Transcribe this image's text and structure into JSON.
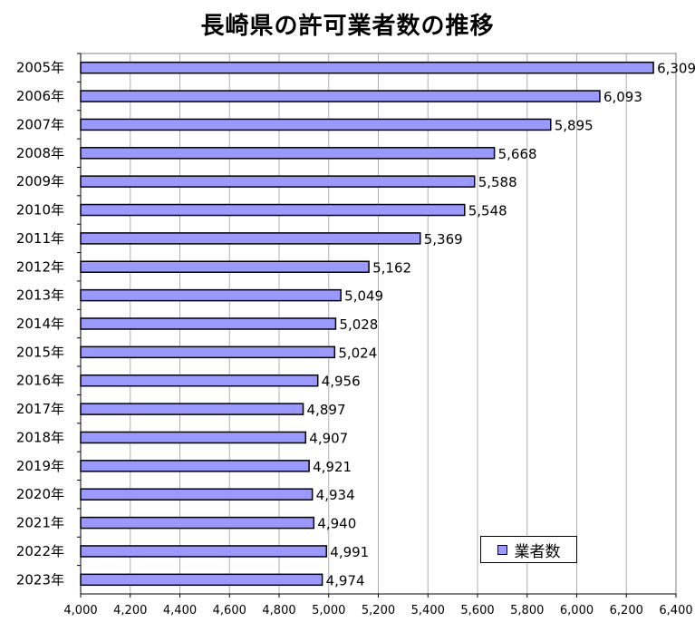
{
  "chart_data": {
    "type": "bar",
    "orientation": "horizontal",
    "title": "長崎県の許可業者数の推移",
    "categories": [
      "2005年",
      "2006年",
      "2007年",
      "2008年",
      "2009年",
      "2010年",
      "2011年",
      "2012年",
      "2013年",
      "2014年",
      "2015年",
      "2016年",
      "2017年",
      "2018年",
      "2019年",
      "2020年",
      "2021年",
      "2022年",
      "2023年"
    ],
    "series": [
      {
        "name": "業者数",
        "values": [
          6309,
          6093,
          5895,
          5668,
          5588,
          5548,
          5369,
          5162,
          5049,
          5028,
          5024,
          4956,
          4897,
          4907,
          4921,
          4934,
          4940,
          4991,
          4974
        ],
        "data_labels": [
          "6,309",
          "6,093",
          "5,895",
          "5,668",
          "5,588",
          "5,548",
          "5,369",
          "5,162",
          "5,049",
          "5,028",
          "5,024",
          "4,956",
          "4,897",
          "4,907",
          "4,921",
          "4,934",
          "4,940",
          "4,991",
          "4,974"
        ],
        "color": "#9999ff"
      }
    ],
    "xlim": [
      4000,
      6400
    ],
    "xticks": [
      "4,000",
      "4,200",
      "4,400",
      "4,600",
      "4,800",
      "5,000",
      "5,200",
      "5,400",
      "5,600",
      "5,800",
      "6,000",
      "6,200",
      "6,400"
    ],
    "xlabel": "",
    "ylabel": "",
    "grid": "vertical",
    "legend": "bottom-right"
  }
}
